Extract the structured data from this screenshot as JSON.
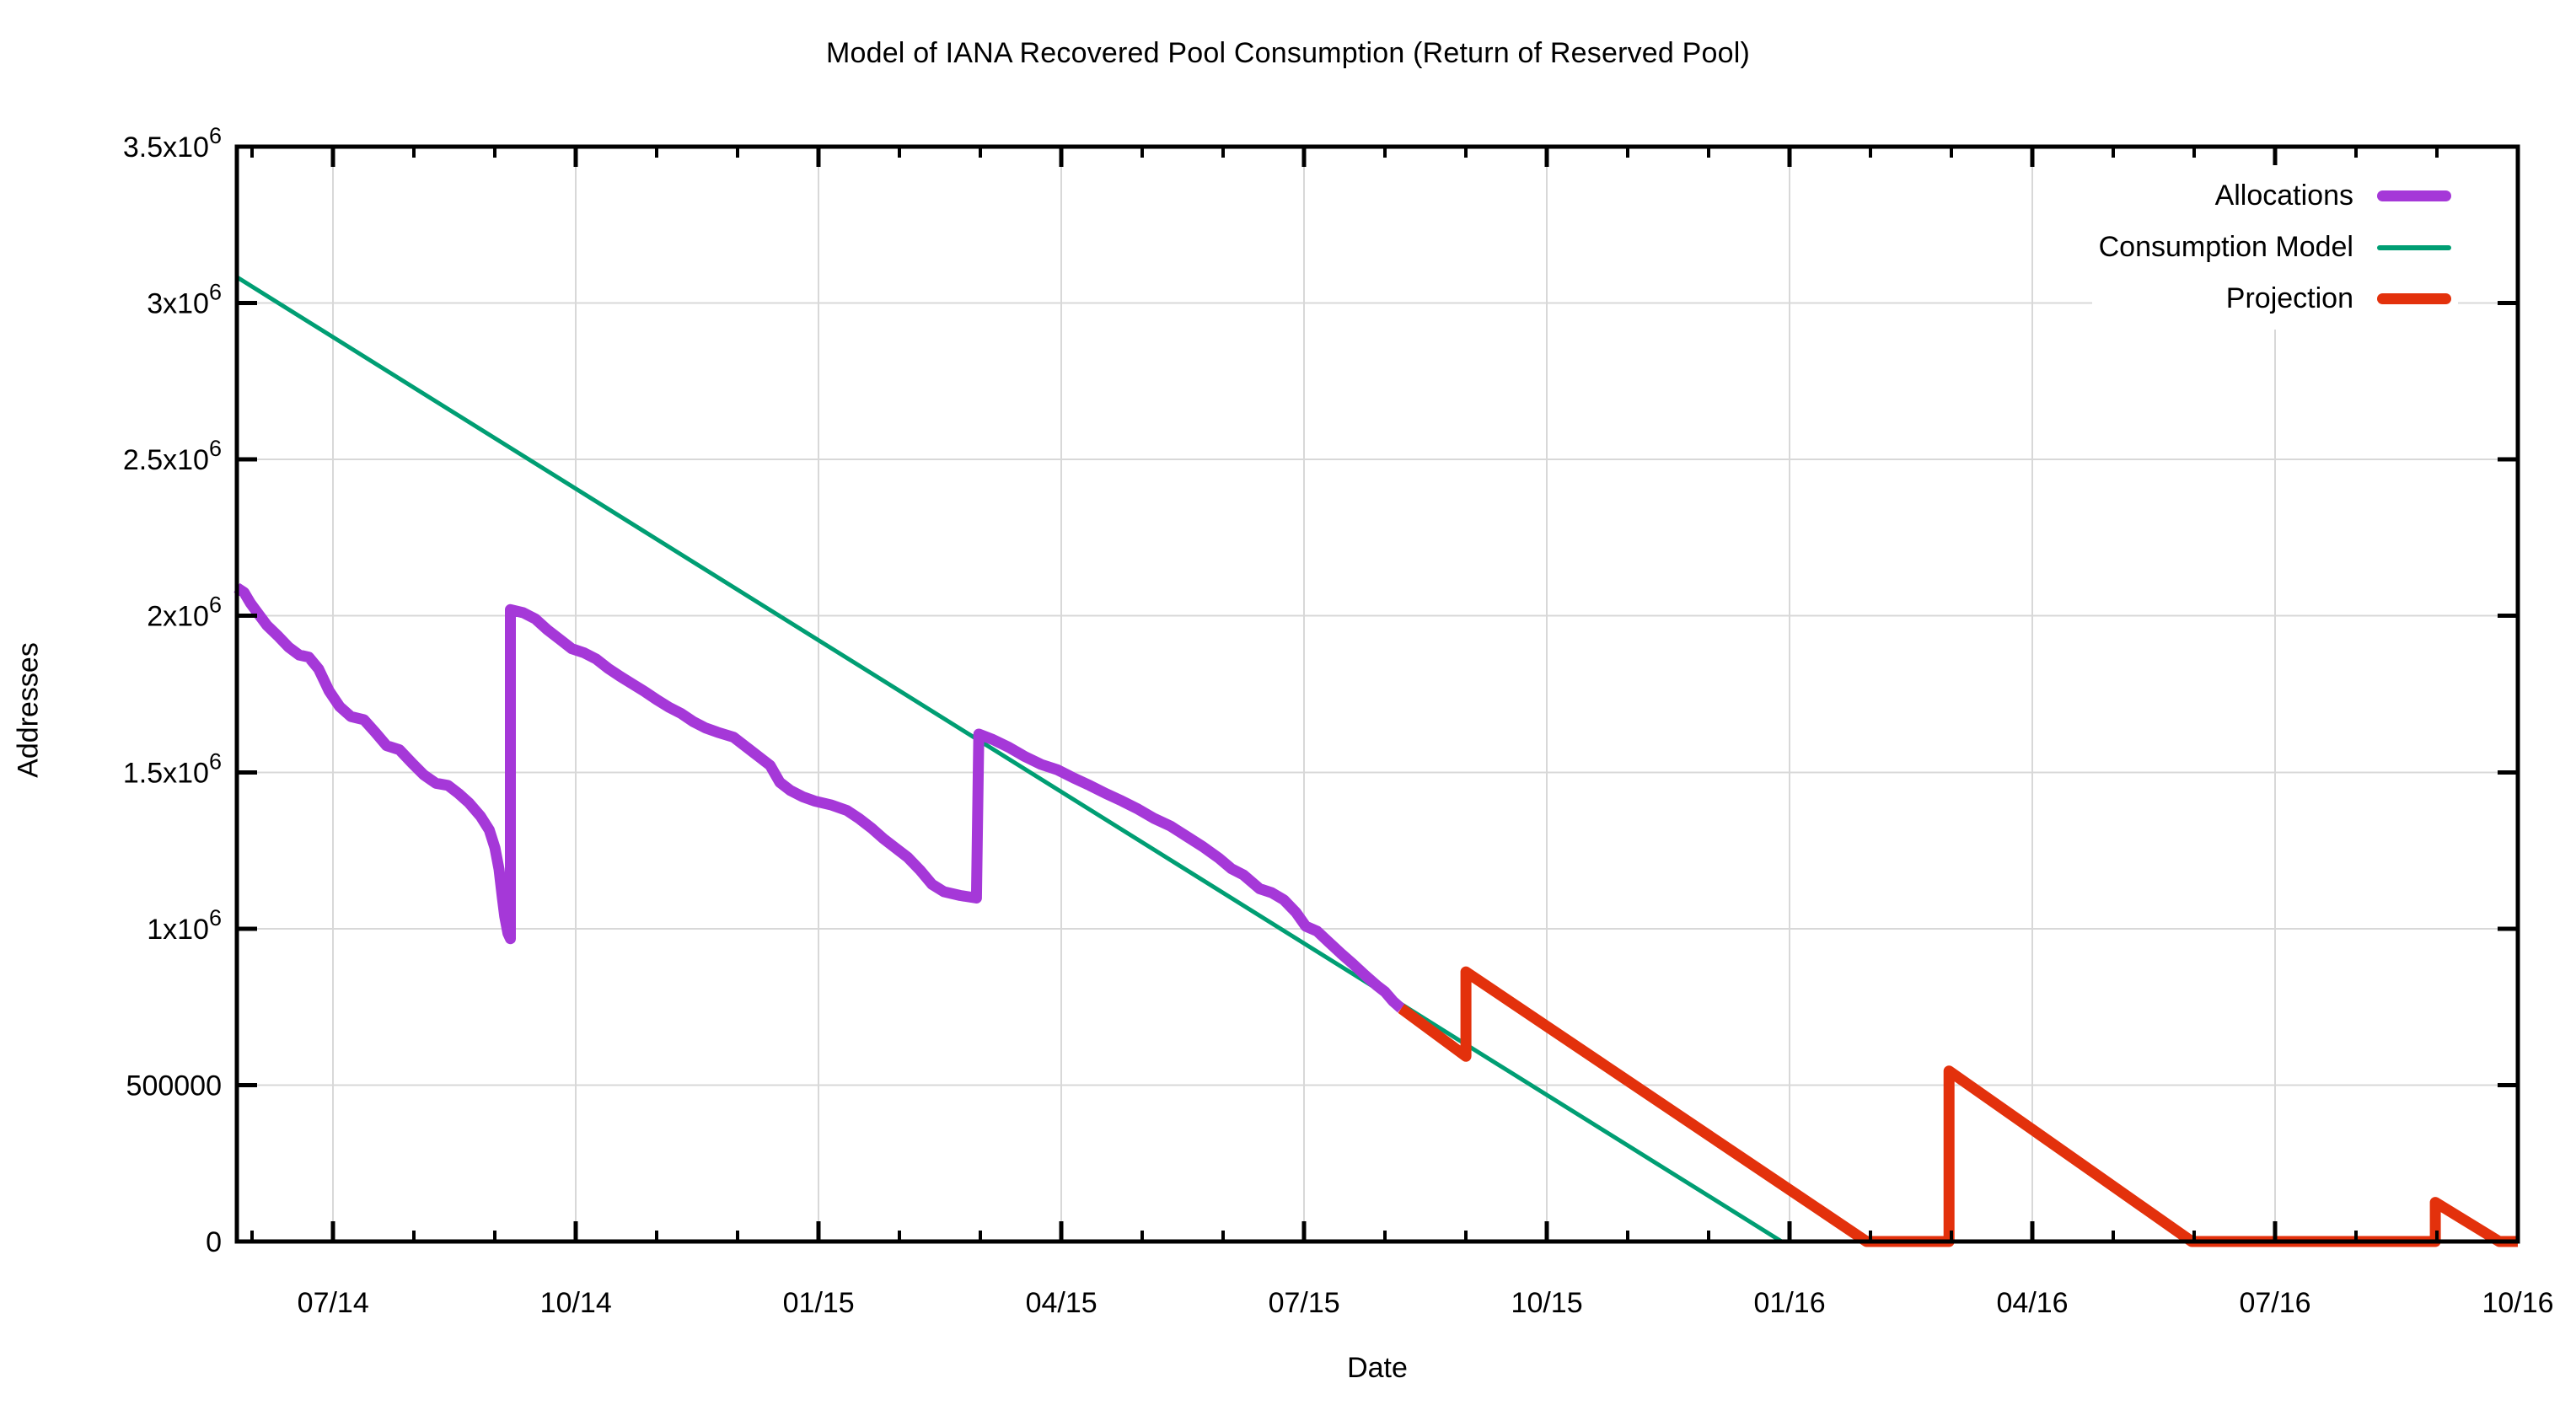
{
  "title": "Model of IANA Recovered Pool Consumption (Return of Reserved Pool)",
  "axes": {
    "x_label": "Date",
    "y_label": "Addresses"
  },
  "chart_data": {
    "type": "line",
    "title": "Model of IANA Recovered Pool Consumption (Return of Reserved Pool)",
    "xlabel": "Date",
    "ylabel": "Addresses",
    "x_unit": "decimal months since 2014-01-01 (6.0 = 01 Jul 2014)",
    "x_range": [
      4.81,
      33
    ],
    "ylim": [
      0,
      3500000
    ],
    "grid": "major",
    "grid_color": "#d8d8d8",
    "legend_position": "top-right-inside",
    "x_major_ticks": [
      {
        "t": 6,
        "label": "07/14"
      },
      {
        "t": 9,
        "label": "10/14"
      },
      {
        "t": 12,
        "label": "01/15"
      },
      {
        "t": 15,
        "label": "04/15"
      },
      {
        "t": 18,
        "label": "07/15"
      },
      {
        "t": 21,
        "label": "10/15"
      },
      {
        "t": 24,
        "label": "01/16"
      },
      {
        "t": 27,
        "label": "04/16"
      },
      {
        "t": 30,
        "label": "07/16"
      },
      {
        "t": 33,
        "label": "10/16"
      }
    ],
    "x_minor_tick_step": 1,
    "y_major_ticks": [
      {
        "v": 0,
        "label": "0"
      },
      {
        "v": 500000,
        "label": "500000"
      },
      {
        "v": 1000000,
        "label": "1x10^6"
      },
      {
        "v": 1500000,
        "label": "1.5x10^6"
      },
      {
        "v": 2000000,
        "label": "2x10^6"
      },
      {
        "v": 2500000,
        "label": "2.5x10^6"
      },
      {
        "v": 3000000,
        "label": "3x10^6"
      },
      {
        "v": 3500000,
        "label": "3.5x10^6"
      }
    ],
    "series": [
      {
        "name": "Consumption Model",
        "color": "#009e73",
        "stroke_width": 5,
        "points": [
          [
            4.81,
            3083000
          ],
          [
            23.9,
            0
          ]
        ]
      },
      {
        "name": "Allocations",
        "color": "#a538d8",
        "stroke_width": 13,
        "points": [
          [
            4.81,
            2090000
          ],
          [
            4.9,
            2075000
          ],
          [
            4.98,
            2040000
          ],
          [
            5.08,
            2005000
          ],
          [
            5.18,
            1970000
          ],
          [
            5.32,
            1935000
          ],
          [
            5.45,
            1900000
          ],
          [
            5.58,
            1875000
          ],
          [
            5.7,
            1868000
          ],
          [
            5.82,
            1830000
          ],
          [
            5.95,
            1760000
          ],
          [
            6.08,
            1710000
          ],
          [
            6.22,
            1678000
          ],
          [
            6.38,
            1668000
          ],
          [
            6.52,
            1628000
          ],
          [
            6.66,
            1585000
          ],
          [
            6.82,
            1572000
          ],
          [
            6.98,
            1528000
          ],
          [
            7.12,
            1492000
          ],
          [
            7.27,
            1465000
          ],
          [
            7.42,
            1458000
          ],
          [
            7.55,
            1432000
          ],
          [
            7.68,
            1402000
          ],
          [
            7.82,
            1360000
          ],
          [
            7.93,
            1315000
          ],
          [
            8.0,
            1258000
          ],
          [
            8.05,
            1190000
          ],
          [
            8.09,
            1100000
          ],
          [
            8.12,
            1040000
          ],
          [
            8.16,
            985000
          ],
          [
            8.19,
            968000
          ],
          [
            8.19,
            2020000
          ],
          [
            8.35,
            2010000
          ],
          [
            8.5,
            1990000
          ],
          [
            8.65,
            1955000
          ],
          [
            8.8,
            1925000
          ],
          [
            8.95,
            1895000
          ],
          [
            9.1,
            1882000
          ],
          [
            9.25,
            1862000
          ],
          [
            9.4,
            1832000
          ],
          [
            9.55,
            1806000
          ],
          [
            9.7,
            1782000
          ],
          [
            9.85,
            1758000
          ],
          [
            10.0,
            1732000
          ],
          [
            10.15,
            1708000
          ],
          [
            10.3,
            1688000
          ],
          [
            10.45,
            1662000
          ],
          [
            10.6,
            1642000
          ],
          [
            10.75,
            1628000
          ],
          [
            10.95,
            1612000
          ],
          [
            11.1,
            1582000
          ],
          [
            11.25,
            1552000
          ],
          [
            11.4,
            1522000
          ],
          [
            11.52,
            1468000
          ],
          [
            11.65,
            1442000
          ],
          [
            11.8,
            1422000
          ],
          [
            11.95,
            1408000
          ],
          [
            12.15,
            1396000
          ],
          [
            12.35,
            1378000
          ],
          [
            12.5,
            1352000
          ],
          [
            12.65,
            1322000
          ],
          [
            12.8,
            1288000
          ],
          [
            12.95,
            1258000
          ],
          [
            13.1,
            1228000
          ],
          [
            13.25,
            1188000
          ],
          [
            13.4,
            1142000
          ],
          [
            13.55,
            1118000
          ],
          [
            13.75,
            1106000
          ],
          [
            13.95,
            1098000
          ],
          [
            13.98,
            1622000
          ],
          [
            14.15,
            1605000
          ],
          [
            14.35,
            1580000
          ],
          [
            14.55,
            1550000
          ],
          [
            14.75,
            1525000
          ],
          [
            14.95,
            1508000
          ],
          [
            15.15,
            1482000
          ],
          [
            15.35,
            1458000
          ],
          [
            15.55,
            1432000
          ],
          [
            15.75,
            1408000
          ],
          [
            15.95,
            1382000
          ],
          [
            16.15,
            1352000
          ],
          [
            16.35,
            1328000
          ],
          [
            16.55,
            1295000
          ],
          [
            16.75,
            1262000
          ],
          [
            16.95,
            1225000
          ],
          [
            17.1,
            1192000
          ],
          [
            17.25,
            1172000
          ],
          [
            17.45,
            1128000
          ],
          [
            17.6,
            1115000
          ],
          [
            17.75,
            1092000
          ],
          [
            17.9,
            1052000
          ],
          [
            18.02,
            1008000
          ],
          [
            18.16,
            992000
          ],
          [
            18.3,
            958000
          ],
          [
            18.45,
            922000
          ],
          [
            18.6,
            888000
          ],
          [
            18.75,
            852000
          ],
          [
            18.9,
            818000
          ],
          [
            19.0,
            798000
          ],
          [
            19.1,
            768000
          ],
          [
            19.2,
            745000
          ]
        ]
      },
      {
        "name": "Projection",
        "color": "#e3310c",
        "stroke_width": 13,
        "points": [
          [
            19.2,
            745000
          ],
          [
            20.0,
            592000
          ],
          [
            20.0,
            862000
          ],
          [
            24.95,
            0
          ],
          [
            25.97,
            0
          ],
          [
            25.97,
            545000
          ],
          [
            28.97,
            0
          ],
          [
            31.98,
            0
          ],
          [
            31.98,
            125000
          ],
          [
            32.77,
            0
          ],
          [
            33.0,
            0
          ]
        ]
      }
    ]
  },
  "legend": {
    "items": [
      {
        "label": "Allocations"
      },
      {
        "label": "Consumption Model"
      },
      {
        "label": "Projection"
      }
    ]
  }
}
